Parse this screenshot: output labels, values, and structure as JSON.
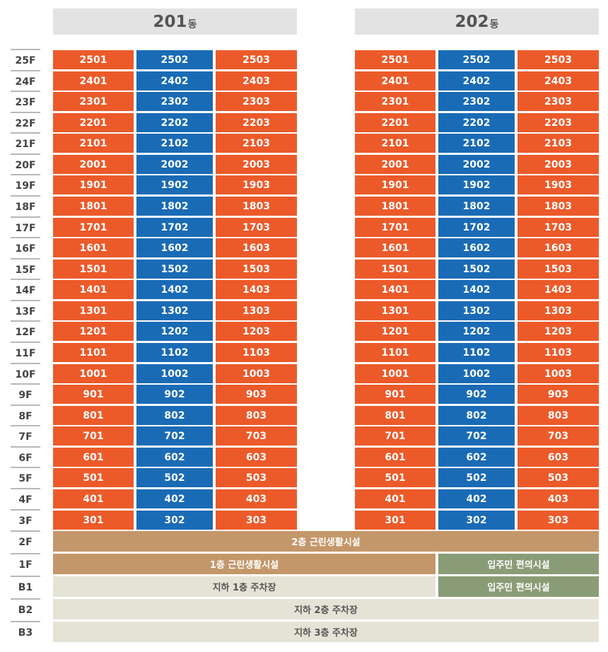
{
  "buildings": [
    {
      "number": "201",
      "suffix": "동"
    },
    {
      "number": "202",
      "suffix": "동"
    }
  ],
  "floors": [
    "25F",
    "24F",
    "23F",
    "22F",
    "21F",
    "20F",
    "19F",
    "18F",
    "17F",
    "16F",
    "15F",
    "14F",
    "13F",
    "12F",
    "11F",
    "10F",
    "9F",
    "8F",
    "7F",
    "6F",
    "5F",
    "4F",
    "3F"
  ],
  "base_floors": [
    "2F",
    "1F",
    "B1",
    "B2",
    "B3"
  ],
  "units_per_floor": [
    "01",
    "02",
    "03"
  ],
  "colors": {
    "odd_unit": "#ec5a2a",
    "middle_unit": "#1a6bb5",
    "commercial": "#c4976a",
    "convenience": "#8a9c75",
    "parking": "#e4e3d6"
  },
  "facilities": {
    "f2_commercial": "2층 근린생활시설",
    "f1_commercial": "1층 근린생활시설",
    "f1_convenience": "입주민 편의시설",
    "b1_parking": "지하 1층 주차장",
    "b1_convenience": "입주민 편의시설",
    "b2_parking": "지하 2층 주차장",
    "b3_parking": "지하 3층 주차장"
  }
}
